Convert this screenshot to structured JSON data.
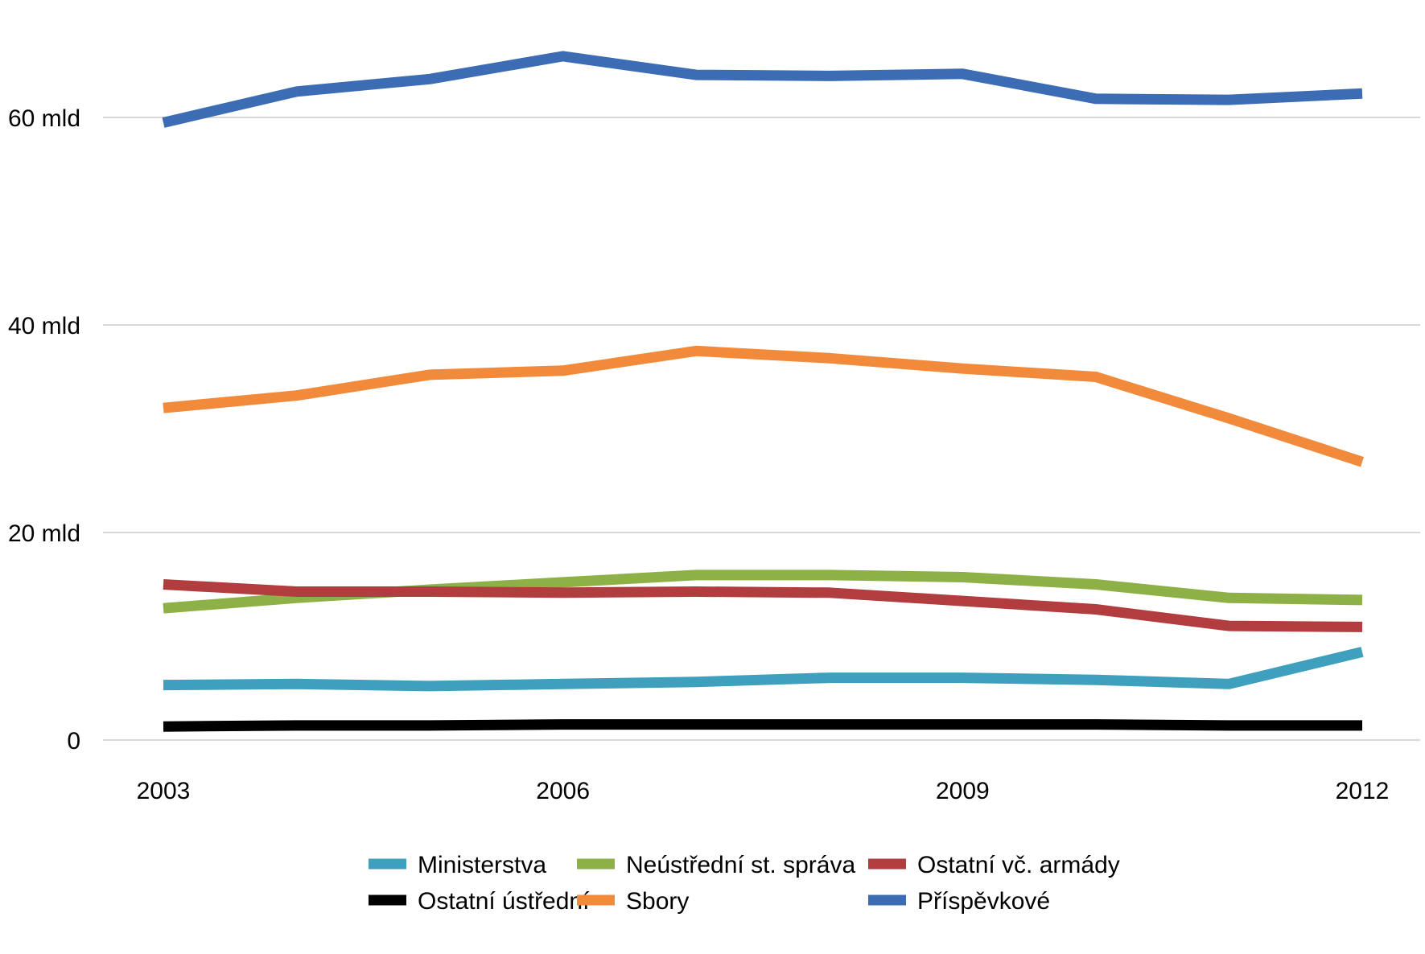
{
  "chart_data": {
    "type": "line",
    "title": "",
    "xlabel": "",
    "ylabel": "",
    "x": [
      2003,
      2004,
      2005,
      2006,
      2007,
      2008,
      2009,
      2010,
      2011,
      2012
    ],
    "x_tick_values": [
      2003,
      2006,
      2009,
      2012
    ],
    "x_tick_labels": [
      "2003",
      "2006",
      "2009",
      "2012"
    ],
    "y_tick_values": [
      0,
      20,
      40,
      60
    ],
    "y_tick_labels": [
      "0",
      "20 mld",
      "40 mld",
      "60 mld"
    ],
    "ylim": [
      0,
      60
    ],
    "grid": "horizontal",
    "legend_position": "bottom",
    "series": [
      {
        "name": "Ministerstva",
        "color": "#3fa0be",
        "values": [
          5.3,
          5.4,
          5.2,
          5.4,
          5.6,
          6.0,
          6.0,
          5.8,
          5.4,
          8.5
        ]
      },
      {
        "name": "Ostatní ústřední",
        "color": "#000000",
        "values": [
          1.3,
          1.4,
          1.4,
          1.5,
          1.5,
          1.5,
          1.5,
          1.5,
          1.4,
          1.4
        ]
      },
      {
        "name": "Neústřední st. správa",
        "color": "#8db146",
        "values": [
          12.7,
          13.7,
          14.5,
          15.2,
          15.9,
          15.9,
          15.7,
          15.0,
          13.7,
          13.5
        ]
      },
      {
        "name": "Sbory",
        "color": "#f28a3c",
        "values": [
          32.0,
          33.2,
          35.2,
          35.6,
          37.5,
          36.8,
          35.8,
          35.0,
          31.0,
          26.8
        ]
      },
      {
        "name": "Ostatní vč. armády",
        "color": "#b13d3f",
        "values": [
          15.0,
          14.3,
          14.3,
          14.2,
          14.3,
          14.2,
          13.4,
          12.6,
          11.0,
          10.9
        ]
      },
      {
        "name": "Příspěvkové",
        "color": "#3c6cb4",
        "values": [
          59.5,
          62.5,
          63.7,
          65.9,
          64.1,
          64.0,
          64.2,
          61.8,
          61.7,
          62.3
        ]
      }
    ]
  }
}
